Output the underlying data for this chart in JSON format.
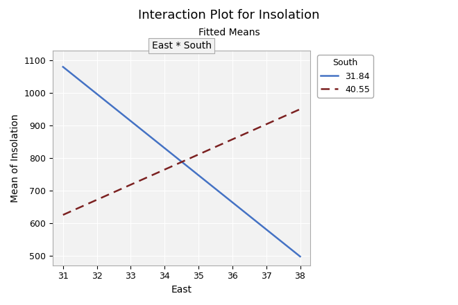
{
  "title": "Interaction Plot for Insolation",
  "subtitle": "Fitted Means",
  "panel_label": "East * South",
  "xlabel": "East",
  "ylabel": "Mean of Insolation",
  "xlim": [
    30.7,
    38.3
  ],
  "ylim": [
    470,
    1130
  ],
  "yticks": [
    500,
    600,
    700,
    800,
    900,
    1000,
    1100
  ],
  "xticks": [
    31,
    32,
    33,
    34,
    35,
    36,
    37,
    38
  ],
  "line1": {
    "label": "31.84",
    "color": "#4472C4",
    "linestyle": "solid",
    "linewidth": 1.8,
    "x": [
      31,
      38
    ],
    "y": [
      1080,
      497
    ]
  },
  "line2": {
    "label": "40.55",
    "color": "#7B2020",
    "linestyle": "dashed",
    "linewidth": 1.8,
    "x": [
      31,
      38
    ],
    "y": [
      625,
      950
    ]
  },
  "legend_title": "South",
  "legend_title_fontsize": 9,
  "legend_fontsize": 9,
  "background_color": "#FFFFFF",
  "panel_facecolor": "#F2F2F2",
  "grid_color": "#FFFFFF",
  "panel_border_color": "#AAAAAA",
  "title_fontsize": 13,
  "subtitle_fontsize": 10,
  "axis_label_fontsize": 10,
  "tick_fontsize": 9
}
